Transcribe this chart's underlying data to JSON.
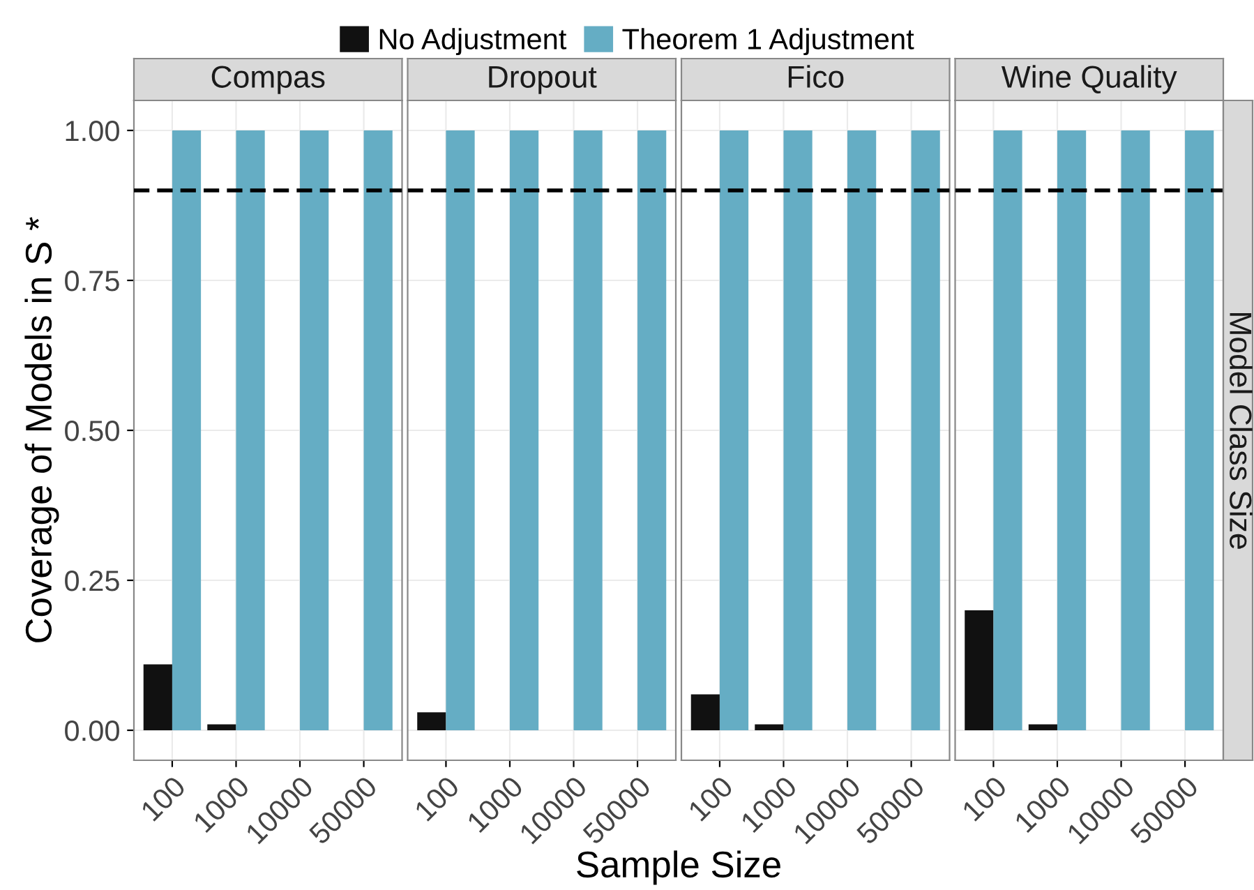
{
  "chart_data": [
    {
      "type": "bar",
      "title": "Compas",
      "xlabel": "Sample Size",
      "ylabel": "Coverage of Models in S *",
      "categories": [
        "100",
        "1000",
        "10000",
        "50000"
      ],
      "ylim": [
        -0.05,
        1.05
      ],
      "yticks": [
        {
          "value": 0,
          "label": "0.00"
        },
        {
          "value": 0.25,
          "label": "0.25"
        },
        {
          "value": 0.5,
          "label": "0.50"
        },
        {
          "value": 0.75,
          "label": "0.75"
        },
        {
          "value": 1,
          "label": "1.00"
        }
      ],
      "grid": true,
      "legend": "top",
      "series": [
        {
          "name": "No Adjustment",
          "color": "#111111",
          "values": [
            0.11,
            0.01,
            0,
            0
          ]
        },
        {
          "name": "Theorem 1 Adjustment",
          "color": "#65adc4",
          "values": [
            1,
            1,
            1,
            1
          ]
        }
      ],
      "ref_lines": [
        {
          "axis": "y",
          "value": 0.9,
          "line_style": "dashed",
          "color": "#000000"
        }
      ]
    },
    {
      "type": "bar",
      "title": "Dropout",
      "categories": [
        "100",
        "1000",
        "10000",
        "50000"
      ],
      "ylim": [
        -0.05,
        1.05
      ],
      "yticks": [
        0,
        0.25,
        0.5,
        0.75,
        1
      ],
      "grid": true,
      "tick_labels": "x",
      "series": [
        {
          "color": "#111111",
          "values": [
            0.03,
            0,
            0,
            0
          ]
        },
        {
          "color": "#65adc4",
          "values": [
            1,
            1,
            1,
            1
          ]
        }
      ],
      "ref_lines": [
        {
          "axis": "y",
          "value": 0.9,
          "line_style": "dashed",
          "color": "#000000"
        }
      ]
    },
    {
      "type": "bar",
      "title": "Fico",
      "categories": [
        "100",
        "1000",
        "10000",
        "50000"
      ],
      "ylim": [
        -0.05,
        1.05
      ],
      "yticks": [
        0,
        0.25,
        0.5,
        0.75,
        1
      ],
      "grid": true,
      "tick_labels": "x",
      "series": [
        {
          "color": "#111111",
          "values": [
            0.06,
            0.01,
            0,
            0
          ]
        },
        {
          "color": "#65adc4",
          "values": [
            1,
            1,
            1,
            1
          ]
        }
      ],
      "ref_lines": [
        {
          "axis": "y",
          "value": 0.9,
          "line_style": "dashed",
          "color": "#000000"
        }
      ]
    },
    {
      "type": "bar",
      "title": "Wine Quality",
      "categories": [
        "100",
        "1000",
        "10000",
        "50000"
      ],
      "ylim": [
        -0.05,
        1.05
      ],
      "yticks": [
        0,
        0.25,
        0.5,
        0.75,
        1
      ],
      "grid": true,
      "tick_labels": "x",
      "annotations": [
        "Model Class Size"
      ],
      "series": [
        {
          "color": "#111111",
          "values": [
            0.2,
            0.01,
            0,
            0
          ]
        },
        {
          "color": "#65adc4",
          "values": [
            1,
            1,
            1,
            1
          ]
        }
      ],
      "ref_lines": [
        {
          "axis": "y",
          "value": 0.9,
          "line_style": "dashed",
          "color": "#000000"
        }
      ]
    }
  ]
}
